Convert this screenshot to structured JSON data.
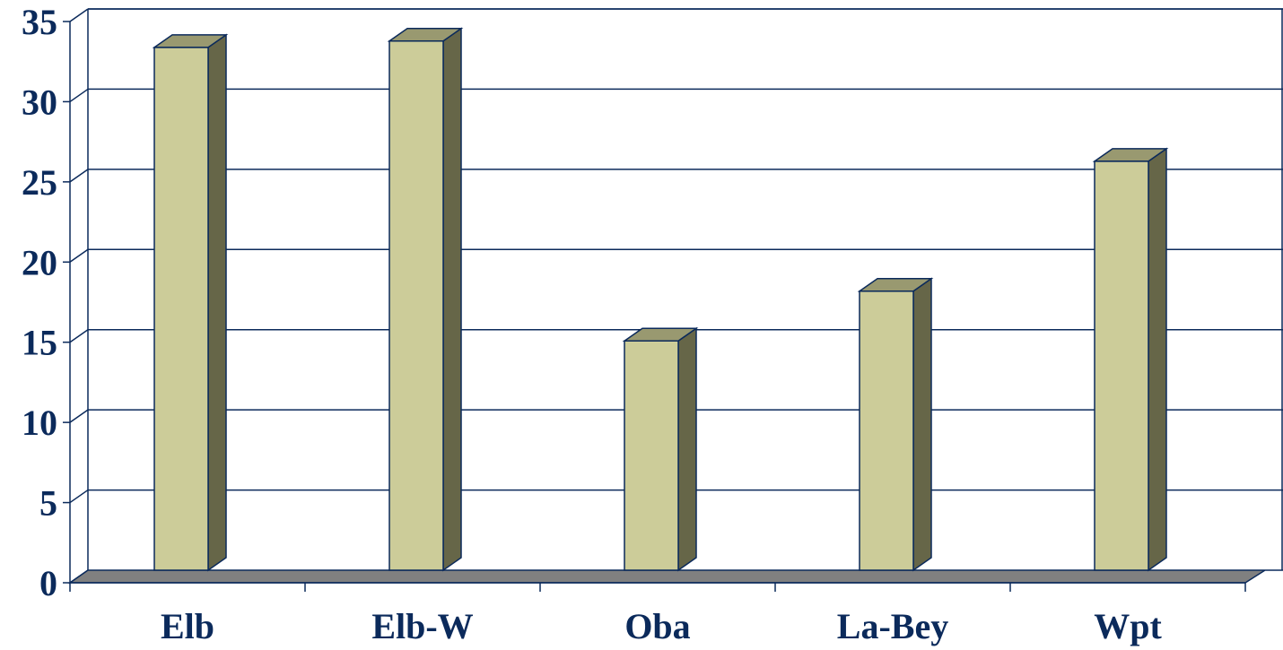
{
  "chart_data": {
    "type": "bar",
    "title": "",
    "xlabel": "",
    "ylabel": "",
    "categories": [
      "Elb",
      "Elb-W",
      "Oba",
      "La-Bey",
      "Wpt"
    ],
    "values": [
      32.6,
      33.0,
      14.3,
      17.4,
      25.5
    ],
    "ylim": [
      0,
      35
    ],
    "yticks": [
      "0",
      "5",
      "10",
      "15",
      "20",
      "25",
      "30",
      "35"
    ],
    "grid": true,
    "legend": "none",
    "style": "3d-column",
    "colors": {
      "bar_front": "#cccc99",
      "bar_side": "#666648",
      "bar_top": "#999970",
      "floor": "#808080",
      "text": "#0b2a5b",
      "grid": "#0b2a5b"
    }
  }
}
